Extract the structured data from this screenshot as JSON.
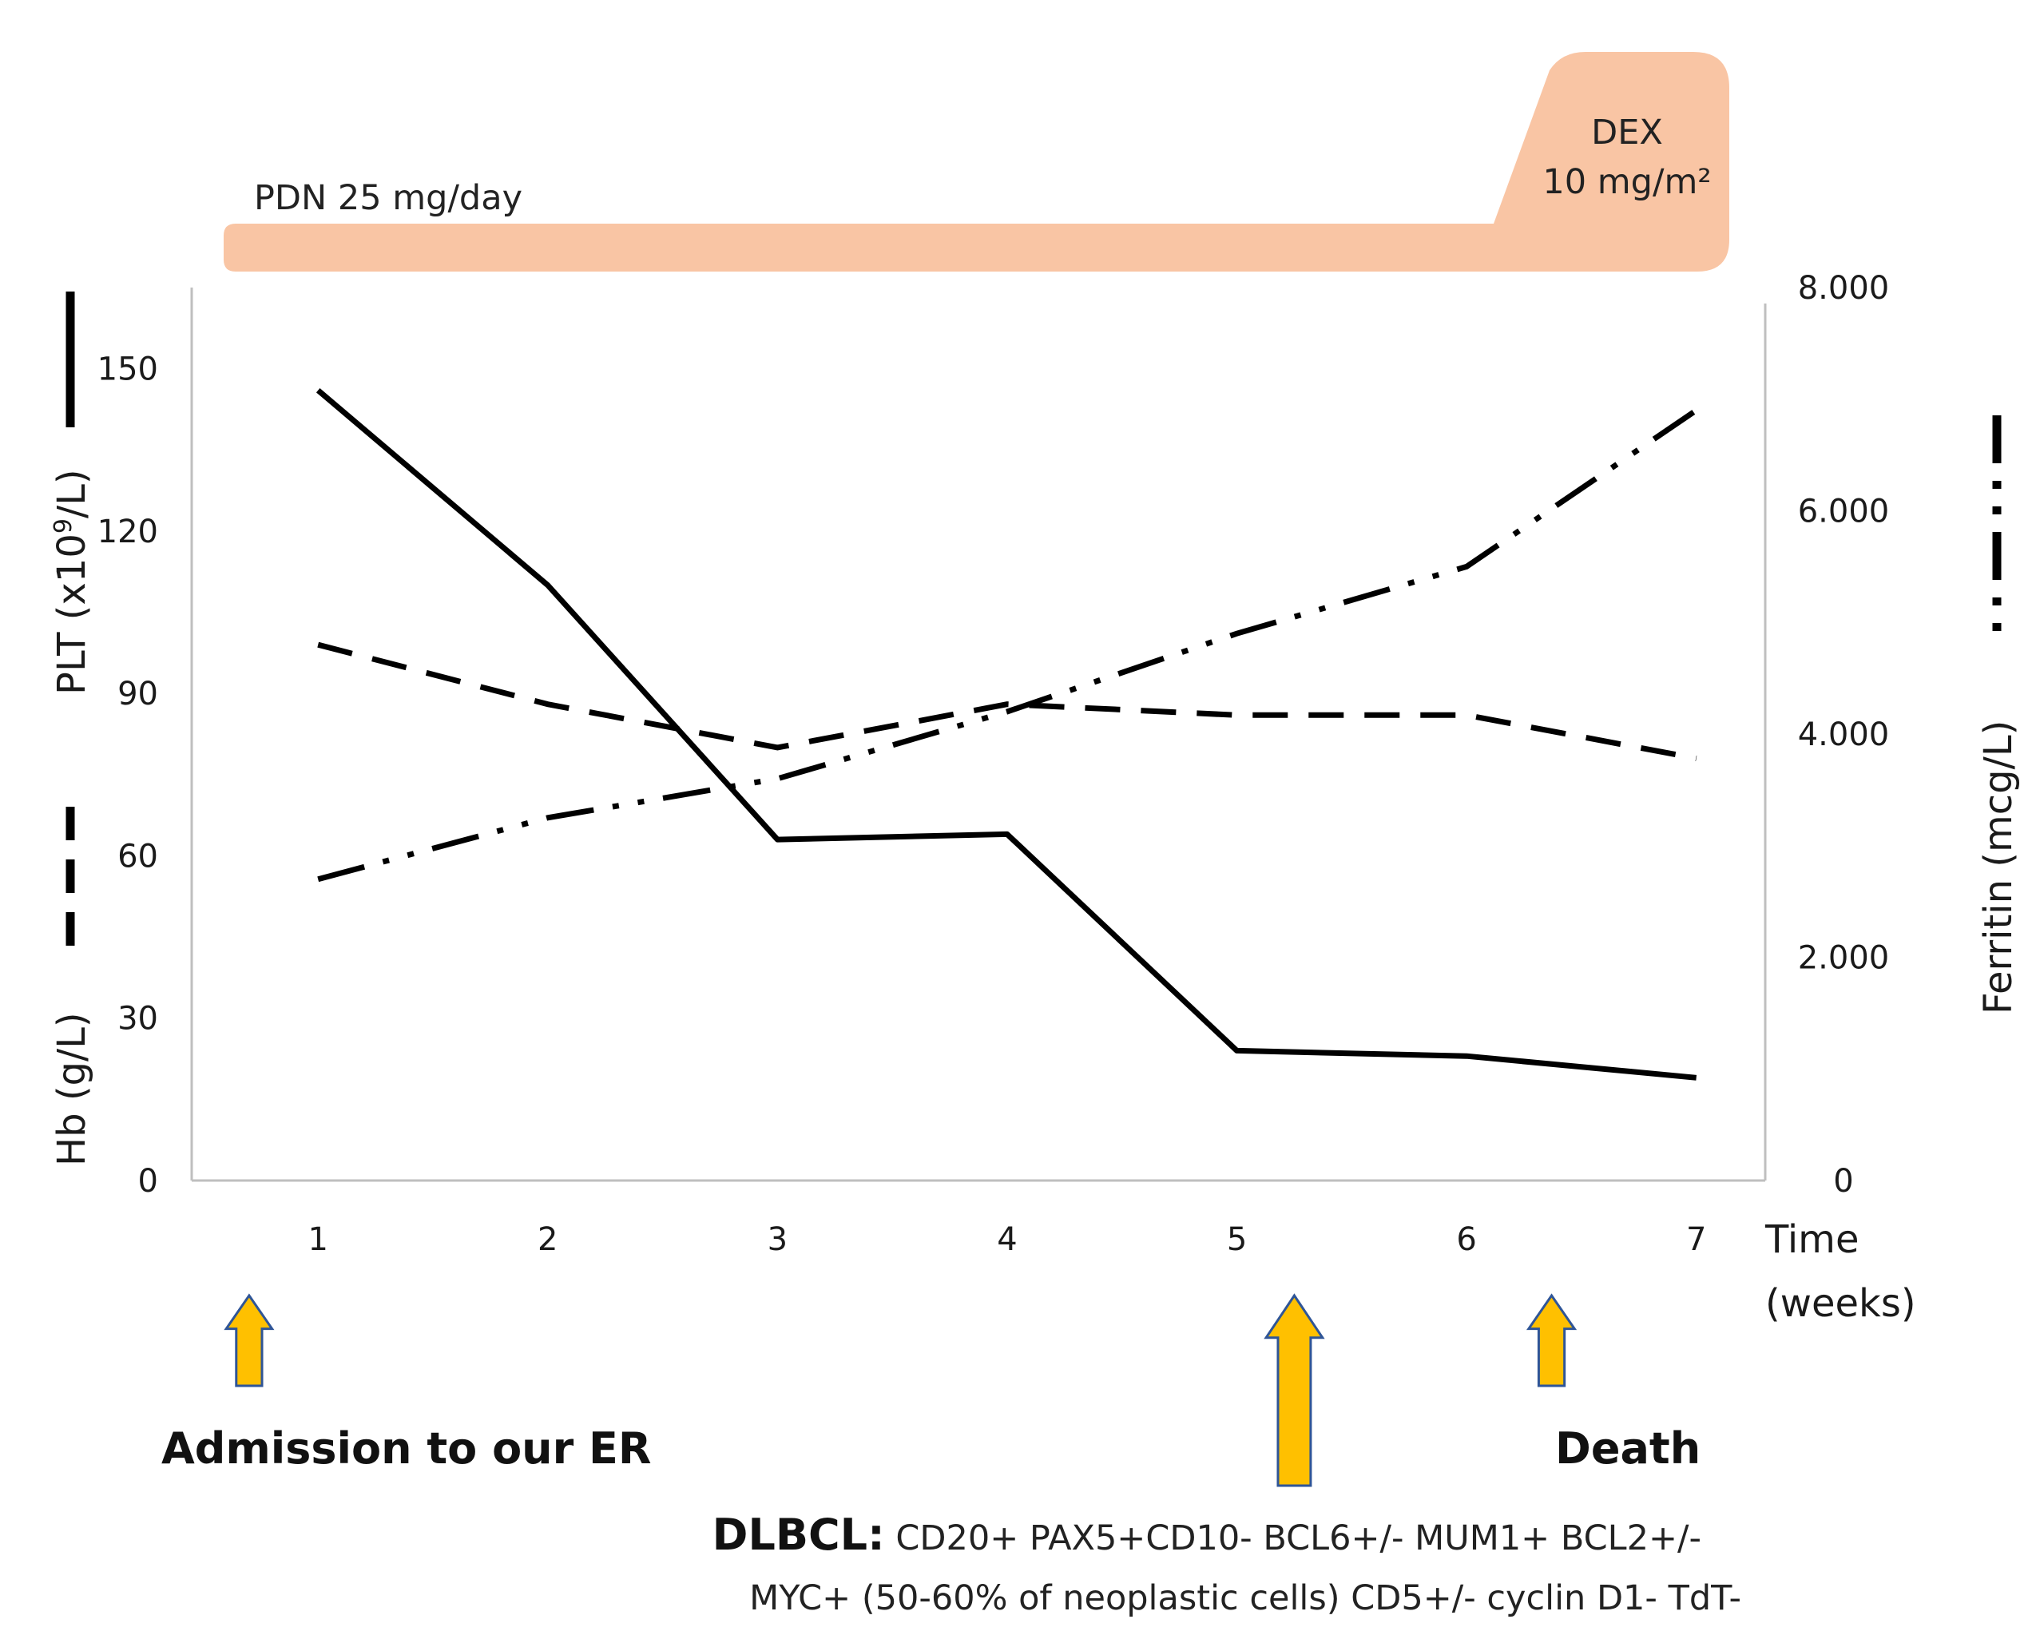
{
  "chart_data": {
    "type": "line",
    "x": [
      1,
      2,
      3,
      4,
      5,
      6,
      7
    ],
    "xlabel": [
      "Time",
      "(weeks)"
    ],
    "xlim": [
      0.45,
      7.3
    ],
    "left_axis": {
      "ticks": [
        "0",
        "30",
        "60",
        "90",
        "120",
        "150"
      ],
      "ylim": [
        0,
        165
      ],
      "label_plt": "PLT (x10",
      "label_plt_sup": "9",
      "label_plt_end": "/L)",
      "label_hb": "Hb (g/L)"
    },
    "right_axis": {
      "ticks": [
        "0",
        "2.000",
        "4.000",
        "6.000",
        "8.000"
      ],
      "ylim": [
        0,
        8000
      ],
      "label": "Ferritin (mcg/L)"
    },
    "series": [
      {
        "name": "PLT",
        "axis": "left",
        "style": "solid",
        "values": [
          146,
          110,
          63,
          64,
          24,
          23,
          19
        ]
      },
      {
        "name": "Hb",
        "axis": "left",
        "style": "dashed",
        "values": [
          99,
          88,
          80,
          88,
          86,
          86,
          78
        ]
      },
      {
        "name": "Ferritin",
        "axis": "right",
        "style": "dash-dot-dot",
        "values": [
          2700,
          3250,
          3600,
          4200,
          4900,
          5500,
          6900
        ]
      }
    ],
    "treatments": [
      {
        "label": "PDN 25 mg/day"
      },
      {
        "label_line1": "DEX",
        "label_line2": "10 mg/m²"
      }
    ],
    "events": [
      {
        "label": "Admission to our ER",
        "week": 0.7
      },
      {
        "label": "",
        "week": 5.25
      },
      {
        "label": "Death",
        "week": 6.37
      }
    ],
    "diagnosis": {
      "bold": "DLBCL:",
      "line1": " CD20+ PAX5+CD10- BCL6+/- MUM1+ BCL2+/-",
      "line2": "MYC+ (50-60% of neoplastic cells) CD5+/- cyclin D1- TdT-"
    },
    "colors": {
      "treatment": "#f9c5a4",
      "arrow_fill": "#ffc000",
      "arrow_stroke": "#2f5597",
      "line": "#000000",
      "axis": "#bfbfbf"
    }
  }
}
